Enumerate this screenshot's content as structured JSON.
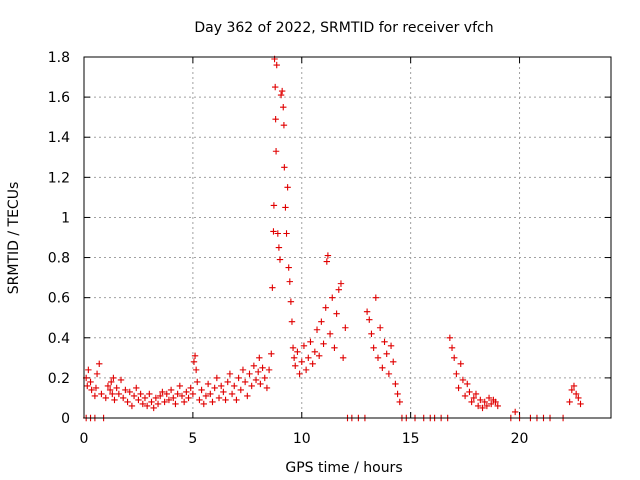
{
  "chart_data": {
    "type": "scatter",
    "title": "Day 362 of 2022, SRMTID for receiver vfch",
    "xlabel": "GPS time / hours",
    "ylabel": "SRMTID / TECUs",
    "xlim": [
      0,
      24.2
    ],
    "ylim": [
      0,
      1.8
    ],
    "x_ticks": [
      0,
      5,
      10,
      15,
      20
    ],
    "x_tick_labels": [
      "0",
      "5",
      "10",
      "15",
      "20"
    ],
    "y_ticks": [
      0,
      0.2,
      0.4,
      0.6,
      0.8,
      1.0,
      1.2,
      1.4,
      1.6,
      1.8
    ],
    "y_tick_labels": [
      "0",
      "0.2",
      "0.4",
      "0.6",
      "0.8",
      "1",
      "1.2",
      "1.4",
      "1.6",
      "1.8"
    ],
    "grid": true,
    "marker": "+",
    "marker_color": "#e00000",
    "series": [
      {
        "name": "SRMTID",
        "points": [
          [
            0.1,
            0.2
          ],
          [
            0.15,
            0.16
          ],
          [
            0.2,
            0.24
          ],
          [
            0.3,
            0.18
          ],
          [
            0.35,
            0.14
          ],
          [
            0.5,
            0.11
          ],
          [
            0.55,
            0.15
          ],
          [
            0.6,
            0.22
          ],
          [
            0.7,
            0.27
          ],
          [
            0.8,
            0.12
          ],
          [
            1.0,
            0.1
          ],
          [
            1.1,
            0.16
          ],
          [
            1.2,
            0.14
          ],
          [
            1.25,
            0.18
          ],
          [
            1.3,
            0.12
          ],
          [
            1.35,
            0.2
          ],
          [
            1.4,
            0.09
          ],
          [
            1.5,
            0.15
          ],
          [
            1.6,
            0.12
          ],
          [
            1.7,
            0.19
          ],
          [
            1.8,
            0.1
          ],
          [
            1.9,
            0.14
          ],
          [
            2.0,
            0.08
          ],
          [
            2.1,
            0.13
          ],
          [
            2.2,
            0.06
          ],
          [
            2.3,
            0.11
          ],
          [
            2.4,
            0.15
          ],
          [
            2.5,
            0.09
          ],
          [
            2.6,
            0.12
          ],
          [
            2.7,
            0.07
          ],
          [
            2.8,
            0.1
          ],
          [
            2.9,
            0.06
          ],
          [
            3.0,
            0.12
          ],
          [
            3.1,
            0.08
          ],
          [
            3.2,
            0.05
          ],
          [
            3.3,
            0.1
          ],
          [
            3.4,
            0.07
          ],
          [
            3.5,
            0.11
          ],
          [
            3.6,
            0.13
          ],
          [
            3.7,
            0.08
          ],
          [
            3.8,
            0.12
          ],
          [
            3.9,
            0.09
          ],
          [
            4.0,
            0.14
          ],
          [
            4.1,
            0.1
          ],
          [
            4.2,
            0.07
          ],
          [
            4.3,
            0.12
          ],
          [
            4.4,
            0.16
          ],
          [
            4.5,
            0.11
          ],
          [
            4.6,
            0.08
          ],
          [
            4.7,
            0.13
          ],
          [
            4.8,
            0.1
          ],
          [
            4.9,
            0.15
          ],
          [
            5.0,
            0.12
          ],
          [
            5.05,
            0.28
          ],
          [
            5.1,
            0.31
          ],
          [
            5.15,
            0.24
          ],
          [
            5.2,
            0.18
          ],
          [
            5.3,
            0.09
          ],
          [
            5.4,
            0.14
          ],
          [
            5.5,
            0.07
          ],
          [
            5.6,
            0.11
          ],
          [
            5.7,
            0.17
          ],
          [
            5.8,
            0.12
          ],
          [
            5.9,
            0.08
          ],
          [
            6.0,
            0.15
          ],
          [
            6.1,
            0.2
          ],
          [
            6.2,
            0.1
          ],
          [
            6.3,
            0.16
          ],
          [
            6.4,
            0.13
          ],
          [
            6.5,
            0.09
          ],
          [
            6.6,
            0.18
          ],
          [
            6.7,
            0.22
          ],
          [
            6.8,
            0.12
          ],
          [
            6.9,
            0.16
          ],
          [
            7.0,
            0.09
          ],
          [
            7.1,
            0.2
          ],
          [
            7.2,
            0.14
          ],
          [
            7.3,
            0.24
          ],
          [
            7.4,
            0.18
          ],
          [
            7.5,
            0.11
          ],
          [
            7.6,
            0.22
          ],
          [
            7.7,
            0.16
          ],
          [
            7.8,
            0.26
          ],
          [
            7.9,
            0.19
          ],
          [
            8.0,
            0.23
          ],
          [
            8.05,
            0.3
          ],
          [
            8.1,
            0.17
          ],
          [
            8.2,
            0.25
          ],
          [
            8.3,
            0.2
          ],
          [
            8.4,
            0.15
          ],
          [
            8.5,
            0.24
          ],
          [
            8.6,
            0.32
          ],
          [
            8.65,
            0.65
          ],
          [
            8.7,
            0.93
          ],
          [
            8.72,
            1.06
          ],
          [
            8.75,
            1.79
          ],
          [
            8.78,
            1.65
          ],
          [
            8.8,
            1.49
          ],
          [
            8.82,
            1.33
          ],
          [
            8.85,
            1.76
          ],
          [
            8.9,
            0.92
          ],
          [
            8.95,
            0.85
          ],
          [
            9.0,
            0.79
          ],
          [
            9.05,
            1.61
          ],
          [
            9.1,
            1.63
          ],
          [
            9.15,
            1.55
          ],
          [
            9.18,
            1.46
          ],
          [
            9.2,
            1.25
          ],
          [
            9.25,
            1.05
          ],
          [
            9.3,
            0.92
          ],
          [
            9.35,
            1.15
          ],
          [
            9.4,
            0.75
          ],
          [
            9.45,
            0.68
          ],
          [
            9.5,
            0.58
          ],
          [
            9.55,
            0.48
          ],
          [
            9.6,
            0.35
          ],
          [
            9.65,
            0.3
          ],
          [
            9.7,
            0.26
          ],
          [
            9.8,
            0.33
          ],
          [
            9.9,
            0.22
          ],
          [
            10.0,
            0.28
          ],
          [
            10.1,
            0.36
          ],
          [
            10.2,
            0.24
          ],
          [
            10.3,
            0.3
          ],
          [
            10.4,
            0.38
          ],
          [
            10.5,
            0.27
          ],
          [
            10.6,
            0.33
          ],
          [
            10.7,
            0.44
          ],
          [
            10.8,
            0.31
          ],
          [
            10.9,
            0.48
          ],
          [
            11.0,
            0.37
          ],
          [
            11.1,
            0.55
          ],
          [
            11.15,
            0.78
          ],
          [
            11.2,
            0.81
          ],
          [
            11.3,
            0.42
          ],
          [
            11.4,
            0.6
          ],
          [
            11.5,
            0.35
          ],
          [
            11.6,
            0.52
          ],
          [
            11.7,
            0.64
          ],
          [
            11.8,
            0.67
          ],
          [
            11.9,
            0.3
          ],
          [
            12.0,
            0.45
          ],
          [
            13.0,
            0.53
          ],
          [
            13.1,
            0.49
          ],
          [
            13.2,
            0.42
          ],
          [
            13.3,
            0.35
          ],
          [
            13.4,
            0.6
          ],
          [
            13.5,
            0.3
          ],
          [
            13.6,
            0.45
          ],
          [
            13.7,
            0.25
          ],
          [
            13.8,
            0.38
          ],
          [
            13.9,
            0.32
          ],
          [
            14.0,
            0.22
          ],
          [
            14.1,
            0.36
          ],
          [
            14.2,
            0.28
          ],
          [
            14.3,
            0.17
          ],
          [
            14.4,
            0.12
          ],
          [
            14.5,
            0.08
          ],
          [
            16.8,
            0.4
          ],
          [
            16.9,
            0.35
          ],
          [
            17.0,
            0.3
          ],
          [
            17.1,
            0.22
          ],
          [
            17.2,
            0.15
          ],
          [
            17.3,
            0.27
          ],
          [
            17.4,
            0.19
          ],
          [
            17.5,
            0.11
          ],
          [
            17.6,
            0.17
          ],
          [
            17.7,
            0.13
          ],
          [
            17.8,
            0.08
          ],
          [
            17.9,
            0.1
          ],
          [
            18.0,
            0.12
          ],
          [
            18.1,
            0.06
          ],
          [
            18.2,
            0.09
          ],
          [
            18.3,
            0.05
          ],
          [
            18.4,
            0.08
          ],
          [
            18.5,
            0.06
          ],
          [
            18.6,
            0.1
          ],
          [
            18.7,
            0.07
          ],
          [
            18.8,
            0.09
          ],
          [
            18.9,
            0.08
          ],
          [
            19.0,
            0.06
          ],
          [
            19.8,
            0.03
          ],
          [
            22.3,
            0.08
          ],
          [
            22.4,
            0.14
          ],
          [
            22.5,
            0.16
          ],
          [
            22.6,
            0.12
          ],
          [
            22.7,
            0.1
          ],
          [
            22.8,
            0.07
          ]
        ],
        "zero_points": [
          0.1,
          0.3,
          0.5,
          0.9,
          12.1,
          12.3,
          12.6,
          12.9,
          14.6,
          14.8,
          15.2,
          15.6,
          15.9,
          16.1,
          16.4,
          16.7,
          19.6,
          20.0,
          20.5,
          20.8,
          21.1,
          21.4,
          22.0
        ]
      }
    ]
  }
}
